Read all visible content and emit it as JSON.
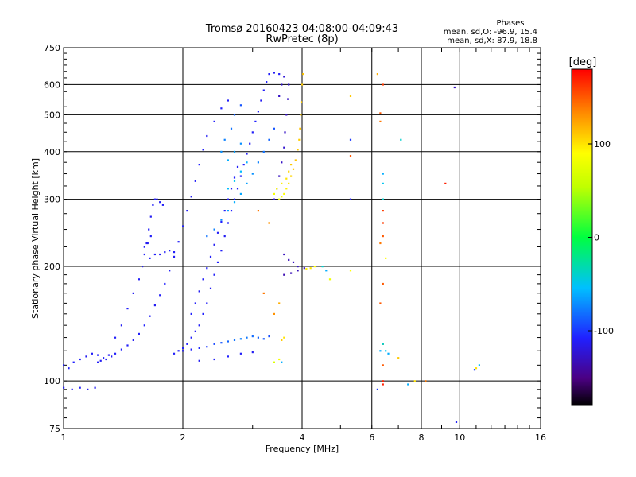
{
  "chart_data": {
    "type": "scatter",
    "title": "Tromsø 20160423 04:08:00-04:09:43",
    "subtitle": "RwPretec (8p)",
    "xlabel": "Frequency [MHz]",
    "ylabel": "Stationary phase Virtual Height [km]",
    "x_scale": "log",
    "y_scale": "log",
    "xlim": [
      1,
      16
    ],
    "ylim": [
      75,
      750
    ],
    "x_ticks": [
      1,
      2,
      4,
      6,
      8,
      10,
      16
    ],
    "y_ticks": [
      75,
      100,
      200,
      300,
      400,
      500,
      600,
      750
    ],
    "grid": true,
    "stats": {
      "heading": "Phases",
      "line_o": "mean, sd,O: -96.9, 15.4",
      "line_x": "mean, sd,X:  87.9, 18.8"
    },
    "colorbar": {
      "label": "[deg]",
      "range": [
        -180,
        180
      ],
      "ticks": [
        100,
        0,
        -100
      ],
      "colormap": "rainbow"
    },
    "points": [
      [
        1.0,
        110,
        -110
      ],
      [
        1.03,
        108,
        -110
      ],
      [
        1.06,
        112,
        -108
      ],
      [
        1.1,
        114,
        -110
      ],
      [
        1.14,
        116,
        -112
      ],
      [
        1.18,
        118,
        -110
      ],
      [
        1.22,
        117,
        -108
      ],
      [
        1.26,
        115,
        -110
      ],
      [
        1.3,
        117,
        -112
      ],
      [
        1.35,
        118,
        -110
      ],
      [
        1.4,
        121,
        -108
      ],
      [
        1.45,
        124,
        -110
      ],
      [
        1.5,
        128,
        -112
      ],
      [
        1.55,
        133,
        -110
      ],
      [
        1.6,
        140,
        -108
      ],
      [
        1.65,
        148,
        -110
      ],
      [
        1.7,
        158,
        -112
      ],
      [
        1.75,
        168,
        -110
      ],
      [
        1.8,
        180,
        -108
      ],
      [
        1.85,
        195,
        -110
      ],
      [
        1.9,
        212,
        -112
      ],
      [
        1.95,
        232,
        -110
      ],
      [
        2.0,
        255,
        -108
      ],
      [
        2.05,
        280,
        -110
      ],
      [
        2.1,
        305,
        -112
      ],
      [
        2.15,
        335,
        -110
      ],
      [
        2.2,
        370,
        -108
      ],
      [
        2.25,
        405,
        -110
      ],
      [
        2.3,
        440,
        -112
      ],
      [
        2.4,
        480,
        -110
      ],
      [
        2.5,
        520,
        -108
      ],
      [
        2.6,
        545,
        -110
      ],
      [
        1.0,
        96,
        -112
      ],
      [
        1.05,
        95,
        -112
      ],
      [
        1.1,
        96,
        -110
      ],
      [
        1.15,
        95,
        -112
      ],
      [
        1.2,
        96,
        -112
      ],
      [
        1.22,
        112,
        -110
      ],
      [
        1.24,
        113,
        -112
      ],
      [
        1.28,
        114,
        -110
      ],
      [
        1.32,
        116,
        -112
      ],
      [
        1.35,
        130,
        -110
      ],
      [
        1.4,
        140,
        -112
      ],
      [
        1.45,
        155,
        -110
      ],
      [
        1.5,
        170,
        -112
      ],
      [
        1.55,
        185,
        -110
      ],
      [
        1.58,
        200,
        -112
      ],
      [
        1.6,
        215,
        -110
      ],
      [
        1.62,
        230,
        -112
      ],
      [
        1.64,
        250,
        -110
      ],
      [
        1.66,
        270,
        -112
      ],
      [
        1.68,
        290,
        -110
      ],
      [
        1.7,
        300,
        -112
      ],
      [
        1.65,
        210,
        -108
      ],
      [
        1.7,
        215,
        -110
      ],
      [
        1.75,
        215,
        -112
      ],
      [
        1.8,
        218,
        -110
      ],
      [
        1.85,
        220,
        -108
      ],
      [
        1.9,
        218,
        -110
      ],
      [
        1.6,
        225,
        -110
      ],
      [
        1.63,
        230,
        -112
      ],
      [
        1.66,
        240,
        -110
      ],
      [
        1.72,
        300,
        -110
      ],
      [
        1.75,
        295,
        -112
      ],
      [
        1.78,
        290,
        -110
      ],
      [
        1.9,
        118,
        -110
      ],
      [
        1.95,
        120,
        -112
      ],
      [
        2.0,
        122,
        -110
      ],
      [
        2.05,
        125,
        -108
      ],
      [
        2.1,
        130,
        -110
      ],
      [
        2.15,
        135,
        -112
      ],
      [
        2.2,
        140,
        -110
      ],
      [
        2.25,
        150,
        -108
      ],
      [
        2.3,
        160,
        -110
      ],
      [
        2.35,
        175,
        -112
      ],
      [
        2.4,
        190,
        -110
      ],
      [
        2.45,
        205,
        -108
      ],
      [
        2.5,
        220,
        -110
      ],
      [
        2.55,
        240,
        -112
      ],
      [
        2.6,
        260,
        -110
      ],
      [
        2.65,
        280,
        -108
      ],
      [
        2.7,
        300,
        -110
      ],
      [
        2.75,
        320,
        -112
      ],
      [
        2.8,
        345,
        -110
      ],
      [
        2.85,
        370,
        -108
      ],
      [
        2.9,
        395,
        -110
      ],
      [
        2.95,
        420,
        -112
      ],
      [
        3.0,
        450,
        -110
      ],
      [
        3.05,
        480,
        -108
      ],
      [
        3.1,
        510,
        -110
      ],
      [
        3.15,
        545,
        -112
      ],
      [
        3.2,
        580,
        -110
      ],
      [
        3.25,
        610,
        -108
      ],
      [
        3.3,
        640,
        -110
      ],
      [
        3.4,
        645,
        -112
      ],
      [
        3.5,
        640,
        -110
      ],
      [
        2.1,
        150,
        -108
      ],
      [
        2.15,
        160,
        -110
      ],
      [
        2.2,
        172,
        -112
      ],
      [
        2.25,
        185,
        -110
      ],
      [
        2.3,
        198,
        -108
      ],
      [
        2.35,
        212,
        -110
      ],
      [
        2.4,
        228,
        -112
      ],
      [
        2.45,
        245,
        -110
      ],
      [
        2.5,
        262,
        -108
      ],
      [
        2.55,
        280,
        -110
      ],
      [
        2.6,
        300,
        -112
      ],
      [
        2.65,
        320,
        -110
      ],
      [
        2.7,
        342,
        -108
      ],
      [
        2.75,
        365,
        -110
      ],
      [
        2.3,
        240,
        -80
      ],
      [
        2.4,
        250,
        -75
      ],
      [
        2.5,
        265,
        -70
      ],
      [
        2.6,
        280,
        -65
      ],
      [
        2.7,
        295,
        -60
      ],
      [
        2.8,
        310,
        -62
      ],
      [
        2.9,
        330,
        -65
      ],
      [
        3.0,
        350,
        -70
      ],
      [
        3.1,
        375,
        -75
      ],
      [
        3.2,
        400,
        -80
      ],
      [
        3.3,
        430,
        -85
      ],
      [
        3.4,
        460,
        -90
      ],
      [
        2.6,
        320,
        -55
      ],
      [
        2.7,
        335,
        -50
      ],
      [
        2.8,
        355,
        -55
      ],
      [
        2.9,
        375,
        -60
      ],
      [
        2.6,
        380,
        -60
      ],
      [
        2.7,
        400,
        -65
      ],
      [
        2.8,
        420,
        -70
      ],
      [
        2.5,
        400,
        -70
      ],
      [
        2.55,
        430,
        -75
      ],
      [
        2.65,
        460,
        -80
      ],
      [
        2.7,
        500,
        -85
      ],
      [
        2.8,
        530,
        -90
      ],
      [
        3.4,
        300,
        -125
      ],
      [
        3.45,
        320,
        -128
      ],
      [
        3.5,
        345,
        -130
      ],
      [
        3.55,
        375,
        -128
      ],
      [
        3.6,
        410,
        -125
      ],
      [
        3.62,
        450,
        -128
      ],
      [
        3.65,
        500,
        -130
      ],
      [
        3.68,
        550,
        -128
      ],
      [
        3.7,
        600,
        -125
      ],
      [
        3.5,
        560,
        -128
      ],
      [
        3.55,
        600,
        -125
      ],
      [
        3.6,
        630,
        -122
      ],
      [
        3.5,
        300,
        80
      ],
      [
        3.55,
        305,
        85
      ],
      [
        3.6,
        310,
        90
      ],
      [
        3.65,
        320,
        95
      ],
      [
        3.7,
        330,
        100
      ],
      [
        3.75,
        345,
        105
      ],
      [
        3.8,
        360,
        110
      ],
      [
        3.85,
        380,
        112
      ],
      [
        3.9,
        405,
        110
      ],
      [
        3.93,
        430,
        108
      ],
      [
        3.95,
        460,
        112
      ],
      [
        3.97,
        500,
        110
      ],
      [
        3.98,
        540,
        108
      ],
      [
        4.0,
        600,
        110
      ],
      [
        4.02,
        640,
        112
      ],
      [
        3.4,
        310,
        85
      ],
      [
        3.45,
        320,
        90
      ],
      [
        3.55,
        330,
        95
      ],
      [
        3.65,
        340,
        100
      ],
      [
        3.7,
        355,
        105
      ],
      [
        3.75,
        370,
        110
      ],
      [
        3.6,
        215,
        -130
      ],
      [
        3.7,
        208,
        -132
      ],
      [
        3.8,
        205,
        -130
      ],
      [
        3.9,
        200,
        -128
      ],
      [
        3.6,
        190,
        -135
      ],
      [
        3.75,
        192,
        -133
      ],
      [
        3.9,
        195,
        -132
      ],
      [
        4.05,
        198,
        -130
      ],
      [
        4.1,
        197,
        95
      ],
      [
        4.2,
        198,
        100
      ],
      [
        4.3,
        200,
        90
      ],
      [
        4.5,
        200,
        -40
      ],
      [
        4.6,
        195,
        -60
      ],
      [
        4.7,
        185,
        80
      ],
      [
        5.3,
        195,
        90
      ],
      [
        2.0,
        120,
        -110
      ],
      [
        2.1,
        121,
        -108
      ],
      [
        2.2,
        122,
        -105
      ],
      [
        2.3,
        123,
        -100
      ],
      [
        2.4,
        125,
        -95
      ],
      [
        2.5,
        126,
        -90
      ],
      [
        2.6,
        127,
        -85
      ],
      [
        2.7,
        128,
        -80
      ],
      [
        2.8,
        129,
        -75
      ],
      [
        2.9,
        130,
        -78
      ],
      [
        3.0,
        131,
        -82
      ],
      [
        3.1,
        130,
        -85
      ],
      [
        3.2,
        129,
        -88
      ],
      [
        3.3,
        131,
        -92
      ],
      [
        2.2,
        113,
        -112
      ],
      [
        2.4,
        114,
        -110
      ],
      [
        2.6,
        116,
        -108
      ],
      [
        2.8,
        118,
        -110
      ],
      [
        3.0,
        119,
        -112
      ],
      [
        3.4,
        112,
        70
      ],
      [
        3.5,
        114,
        85
      ],
      [
        3.55,
        128,
        110
      ],
      [
        3.6,
        130,
        100
      ],
      [
        3.55,
        112,
        -60
      ],
      [
        3.2,
        170,
        140
      ],
      [
        3.4,
        150,
        130
      ],
      [
        3.5,
        160,
        120
      ],
      [
        3.1,
        280,
        140
      ],
      [
        3.3,
        260,
        130
      ],
      [
        5.3,
        560,
        110
      ],
      [
        5.3,
        430,
        -100
      ],
      [
        5.3,
        390,
        150
      ],
      [
        5.3,
        300,
        -110
      ],
      [
        6.2,
        640,
        120
      ],
      [
        6.4,
        600,
        160
      ],
      [
        6.3,
        505,
        150
      ],
      [
        6.3,
        480,
        140
      ],
      [
        6.4,
        350,
        -60
      ],
      [
        6.4,
        330,
        -50
      ],
      [
        6.4,
        300,
        -40
      ],
      [
        6.4,
        280,
        160
      ],
      [
        6.4,
        260,
        160
      ],
      [
        6.4,
        240,
        150
      ],
      [
        6.3,
        230,
        140
      ],
      [
        6.5,
        210,
        90
      ],
      [
        6.4,
        180,
        150
      ],
      [
        6.3,
        160,
        150
      ],
      [
        6.4,
        125,
        140
      ],
      [
        6.5,
        120,
        -50
      ],
      [
        6.6,
        118,
        -60
      ],
      [
        6.4,
        110,
        150
      ],
      [
        6.4,
        100,
        170
      ],
      [
        6.4,
        98,
        170
      ],
      [
        6.2,
        95,
        -100
      ],
      [
        6.3,
        120,
        -60
      ],
      [
        6.4,
        125,
        -40
      ],
      [
        7.1,
        430,
        -40
      ],
      [
        7.7,
        100,
        100
      ],
      [
        7.4,
        98,
        -60
      ],
      [
        8.2,
        100,
        140
      ],
      [
        7.0,
        115,
        110
      ],
      [
        9.7,
        590,
        -130
      ],
      [
        9.2,
        330,
        170
      ],
      [
        9.8,
        78,
        -110
      ],
      [
        11.0,
        108,
        100
      ],
      [
        11.2,
        110,
        -50
      ],
      [
        10.9,
        107,
        -100
      ]
    ]
  }
}
